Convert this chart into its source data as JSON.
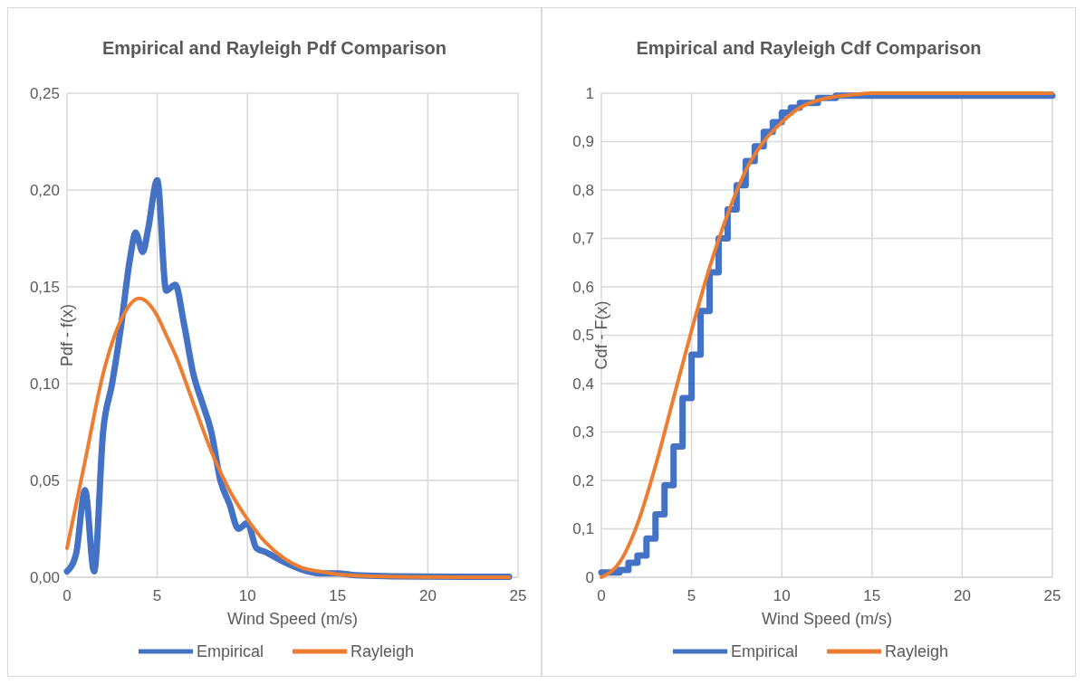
{
  "chart_data": [
    {
      "type": "line",
      "title": "Empirical and Rayleigh Pdf Comparison",
      "xlabel": "Wind Speed (m/s)",
      "ylabel": "Pdf - f(x)",
      "xlim": [
        0,
        25
      ],
      "xticks": [
        0,
        5,
        10,
        15,
        20,
        25
      ],
      "ylim": [
        0,
        0.25
      ],
      "yticks": [
        {
          "value": 0,
          "label": "0,00"
        },
        {
          "value": 0.05,
          "label": "0,05"
        },
        {
          "value": 0.1,
          "label": "0,10"
        },
        {
          "value": 0.15,
          "label": "0,15"
        },
        {
          "value": 0.2,
          "label": "0,20"
        },
        {
          "value": 0.25,
          "label": "0,25"
        }
      ],
      "grid": true,
      "legend": "bottom",
      "series": [
        {
          "name": "Empirical",
          "color": "#4472c4",
          "x": [
            0,
            0.5,
            1,
            1.5,
            2,
            2.5,
            3,
            3.5,
            3.8,
            4.2,
            4.5,
            5,
            5.5,
            6,
            6.5,
            7,
            7.5,
            8,
            8.5,
            9,
            9.5,
            10,
            10.5,
            11,
            12,
            13,
            14,
            15,
            16,
            18,
            20,
            24.5
          ],
          "values": [
            0.003,
            0.012,
            0.045,
            0.003,
            0.075,
            0.1,
            0.13,
            0.165,
            0.178,
            0.168,
            0.18,
            0.205,
            0.148,
            0.151,
            0.13,
            0.105,
            0.09,
            0.075,
            0.05,
            0.038,
            0.025,
            0.028,
            0.015,
            0.013,
            0.008,
            0.004,
            0.002,
            0.002,
            0.001,
            0.0005,
            0.0003,
            0.0002
          ]
        },
        {
          "name": "Rayleigh",
          "color": "#ed7d31",
          "x": [
            0,
            1,
            2,
            3,
            4,
            5,
            5.5,
            6,
            7,
            8,
            9,
            10,
            11,
            12,
            13,
            14,
            15,
            17,
            20,
            24.5
          ],
          "values": [
            0.015,
            0.06,
            0.105,
            0.133,
            0.144,
            0.135,
            0.125,
            0.115,
            0.09,
            0.065,
            0.045,
            0.03,
            0.018,
            0.01,
            0.005,
            0.003,
            0.0015,
            0.0005,
            0.0001,
            0
          ]
        }
      ]
    },
    {
      "type": "line",
      "title": "Empirical and Rayleigh Cdf Comparison",
      "xlabel": "Wind Speed (m/s)",
      "ylabel": "Cdf - F(x)",
      "xlim": [
        0,
        25
      ],
      "xticks": [
        0,
        5,
        10,
        15,
        20,
        25
      ],
      "ylim": [
        0,
        1
      ],
      "yticks": [
        0,
        {
          "value": 0.1,
          "label": "0,1"
        },
        {
          "value": 0.2,
          "label": "0,2"
        },
        {
          "value": 0.3,
          "label": "0,3"
        },
        {
          "value": 0.4,
          "label": "0,4"
        },
        {
          "value": 0.5,
          "label": "0,5"
        },
        {
          "value": 0.6,
          "label": "0,6"
        },
        {
          "value": 0.7,
          "label": "0,7"
        },
        {
          "value": 0.8,
          "label": "0,8"
        },
        {
          "value": 0.9,
          "label": "0,9"
        },
        1
      ],
      "grid": true,
      "legend": "bottom",
      "series": [
        {
          "name": "Empirical",
          "type": "step",
          "color": "#4472c4",
          "x": [
            0,
            1,
            1.5,
            2,
            2.5,
            3,
            3.5,
            4,
            4.5,
            5,
            5.5,
            6,
            6.5,
            7,
            7.5,
            8,
            8.5,
            9,
            9.5,
            10,
            10.5,
            11,
            12,
            13,
            14,
            25
          ],
          "values": [
            0.01,
            0.015,
            0.03,
            0.045,
            0.08,
            0.13,
            0.19,
            0.27,
            0.37,
            0.46,
            0.55,
            0.63,
            0.7,
            0.76,
            0.81,
            0.86,
            0.89,
            0.92,
            0.94,
            0.96,
            0.97,
            0.98,
            0.99,
            0.995,
            0.995,
            0.995
          ]
        },
        {
          "name": "Rayleigh",
          "color": "#ed7d31",
          "x": [
            0,
            1,
            2,
            3,
            4,
            5,
            6,
            7,
            8,
            9,
            10,
            11,
            12,
            13,
            14,
            15,
            25
          ],
          "values": [
            0,
            0.03,
            0.11,
            0.23,
            0.37,
            0.51,
            0.64,
            0.75,
            0.84,
            0.9,
            0.94,
            0.97,
            0.985,
            0.993,
            0.997,
            1,
            1
          ]
        }
      ]
    }
  ]
}
